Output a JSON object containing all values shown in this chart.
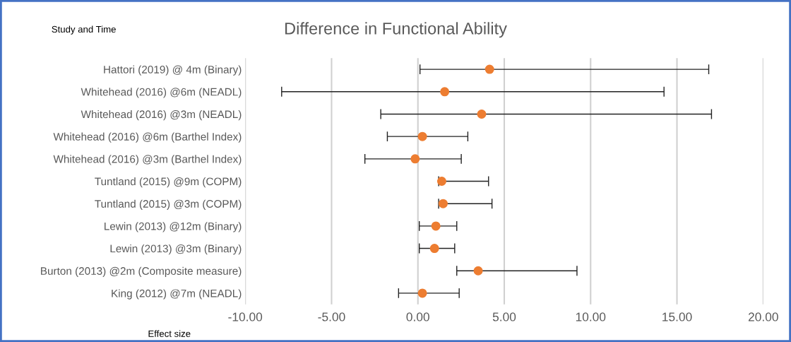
{
  "chart_data": {
    "type": "scatter",
    "orientation": "horizontal",
    "title": "Difference in Functional Ability",
    "xlabel": "Effect size",
    "ylabel": "Study and Time",
    "categories": [
      "Hattori (2019) @ 4m (Binary)",
      "Whitehead (2016) @6m (NEADL)",
      "Whitehead (2016) @3m (NEADL)",
      "Whitehead (2016) @6m (Barthel Index)",
      "Whitehead (2016) @3m (Barthel Index)",
      "Tuntland (2015) @9m (COPM)",
      "Tuntland (2015) @3m (COPM)",
      "Lewin (2013) @12m (Binary)",
      "Lewin (2013) @3m (Binary)",
      "Burton (2013) @2m (Composite measure)",
      "King (2012) @7m (NEADL)"
    ],
    "color": "#ed7d31",
    "values": [
      4.15,
      1.55,
      3.69,
      0.26,
      -0.16,
      1.38,
      1.46,
      1.04,
      0.96,
      3.49,
      0.26
    ],
    "errors": [
      [
        0.12,
        16.84
      ],
      [
        -7.89,
        14.25
      ],
      [
        -2.15,
        17.0
      ],
      [
        -1.77,
        2.89
      ],
      [
        -3.07,
        2.51
      ],
      [
        1.2,
        4.09
      ],
      [
        1.2,
        4.29
      ],
      [
        0.08,
        2.25
      ],
      [
        0.08,
        2.13
      ],
      [
        2.25,
        9.21
      ],
      [
        -1.12,
        2.39
      ]
    ],
    "xlim": [
      -10,
      20
    ],
    "xticks": [
      {
        "value": -10,
        "label": "-10.00"
      },
      {
        "value": -5,
        "label": "-5.00"
      },
      {
        "value": 0,
        "label": "0.00"
      },
      {
        "value": 5,
        "label": "5.00"
      },
      {
        "value": 10,
        "label": "10.00"
      },
      {
        "value": 15,
        "label": "15.00"
      },
      {
        "value": 20,
        "label": "20.00"
      }
    ],
    "grid": "x",
    "marker": "circle"
  }
}
